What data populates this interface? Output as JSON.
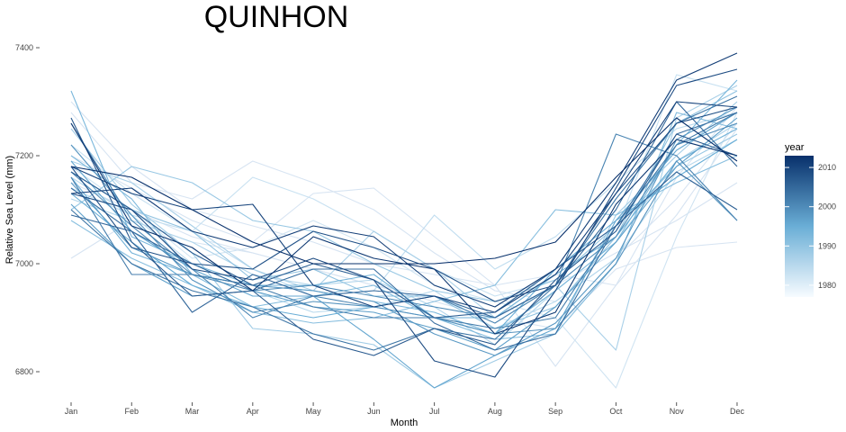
{
  "chart_data": {
    "type": "line",
    "title": "QUINHON",
    "xlabel": "Month",
    "ylabel": "Relative Sea Level (mm)",
    "categories": [
      "Jan",
      "Feb",
      "Mar",
      "Apr",
      "May",
      "Jun",
      "Jul",
      "Aug",
      "Sep",
      "Oct",
      "Nov",
      "Dec"
    ],
    "yticks": [
      6800,
      7000,
      7200,
      7400
    ],
    "ylim": [
      6750,
      7420
    ],
    "grid": false,
    "legend": {
      "title": "year",
      "ticks": [
        1980,
        1990,
        2000,
        2010
      ],
      "range": [
        1977,
        2013
      ],
      "placement": "right",
      "colors": {
        "low": "#f7fbff",
        "mid": "#6aaed6",
        "high": "#08306b"
      }
    },
    "series": [
      {
        "year": 1977,
        "values": [
          7010,
          7080,
          7040,
          7020,
          6990,
          6960,
          6930,
          6900,
          6880,
          6990,
          7030,
          7040
        ]
      },
      {
        "year": 1978,
        "values": [
          7150,
          7100,
          7050,
          7020,
          6990,
          6960,
          6940,
          6900,
          6960,
          7020,
          7080,
          7150
        ]
      },
      {
        "year": 1979,
        "values": [
          7300,
          7180,
          7100,
          7070,
          7040,
          7000,
          6980,
          6960,
          6980,
          6960,
          7090,
          7250
        ]
      },
      {
        "year": 1980,
        "values": [
          7280,
          7150,
          7120,
          7190,
          7150,
          7100,
          7020,
          6950,
          6930,
          7010,
          7120,
          7260
        ]
      },
      {
        "year": 1981,
        "values": [
          7200,
          7140,
          7080,
          7040,
          7130,
          7140,
          7050,
          6960,
          6810,
          6960,
          7160,
          7290
        ]
      },
      {
        "year": 1982,
        "values": [
          7180,
          7100,
          7010,
          7030,
          7080,
          7030,
          6960,
          6930,
          6900,
          6770,
          7050,
          7280
        ]
      },
      {
        "year": 1983,
        "values": [
          7220,
          7130,
          7060,
          7160,
          7120,
          7060,
          6990,
          6940,
          6970,
          7060,
          7350,
          7320
        ]
      },
      {
        "year": 1984,
        "values": [
          7140,
          7090,
          7060,
          6990,
          6940,
          6950,
          7090,
          6990,
          7050,
          7150,
          7250,
          7280
        ]
      },
      {
        "year": 1985,
        "values": [
          7160,
          7090,
          7000,
          6950,
          6910,
          6920,
          6950,
          6880,
          6930,
          7010,
          7170,
          7230
        ]
      },
      {
        "year": 1986,
        "values": [
          7120,
          7080,
          7040,
          6980,
          6960,
          6970,
          6920,
          6850,
          6950,
          7040,
          7190,
          7260
        ]
      },
      {
        "year": 1987,
        "values": [
          7190,
          7150,
          7070,
          6990,
          6950,
          7060,
          6990,
          6900,
          6960,
          6840,
          7270,
          7330
        ]
      },
      {
        "year": 1988,
        "values": [
          7250,
          7110,
          7020,
          6880,
          6870,
          6850,
          6770,
          6820,
          6870,
          7090,
          7200,
          7300
        ]
      },
      {
        "year": 1989,
        "values": [
          7100,
          7180,
          7150,
          7080,
          7060,
          7000,
          6950,
          6930,
          6970,
          7070,
          7180,
          7240
        ]
      },
      {
        "year": 1990,
        "values": [
          7170,
          7100,
          7060,
          6970,
          6990,
          6940,
          6940,
          6880,
          6920,
          7050,
          7260,
          7320
        ]
      },
      {
        "year": 1991,
        "values": [
          7080,
          7010,
          6960,
          6910,
          6890,
          6900,
          6930,
          6960,
          7100,
          7090,
          7150,
          7200
        ]
      },
      {
        "year": 1992,
        "values": [
          7200,
          7120,
          6980,
          6920,
          6940,
          6960,
          6900,
          6860,
          6870,
          7000,
          7280,
          7250
        ]
      },
      {
        "year": 1993,
        "values": [
          7320,
          7050,
          7000,
          6960,
          6950,
          6930,
          6910,
          6870,
          6950,
          7040,
          7220,
          7340
        ]
      },
      {
        "year": 1994,
        "values": [
          7160,
          7020,
          6980,
          6960,
          6960,
          6980,
          6900,
          6900,
          6980,
          7050,
          7190,
          7250
        ]
      },
      {
        "year": 1995,
        "values": [
          7130,
          7040,
          6960,
          6920,
          6900,
          6920,
          6900,
          6870,
          6990,
          7080,
          7160,
          7230
        ]
      },
      {
        "year": 1996,
        "values": [
          7190,
          7060,
          6990,
          6940,
          6940,
          6860,
          6770,
          6830,
          6880,
          7080,
          7210,
          7280
        ]
      },
      {
        "year": 1997,
        "values": [
          7110,
          7000,
          6940,
          6950,
          6920,
          6910,
          6880,
          6840,
          6920,
          7040,
          7180,
          7270
        ]
      },
      {
        "year": 1998,
        "values": [
          7150,
          7030,
          6980,
          6960,
          6950,
          6930,
          6870,
          6830,
          6890,
          7010,
          7230,
          7290
        ]
      },
      {
        "year": 1999,
        "values": [
          7220,
          7090,
          6970,
          6910,
          6930,
          6920,
          6900,
          6870,
          6880,
          7000,
          7190,
          7080
        ]
      },
      {
        "year": 2000,
        "values": [
          7170,
          7070,
          6980,
          6950,
          6960,
          6940,
          6920,
          6900,
          6960,
          7050,
          7220,
          7260
        ]
      },
      {
        "year": 2001,
        "values": [
          7260,
          7080,
          6990,
          6900,
          6940,
          6920,
          6940,
          6890,
          6960,
          7240,
          7200,
          7080
        ]
      },
      {
        "year": 2002,
        "values": [
          7160,
          6980,
          6980,
          6960,
          6920,
          6900,
          6900,
          6880,
          6900,
          7070,
          7220,
          7280
        ]
      },
      {
        "year": 2003,
        "values": [
          7100,
          7000,
          6950,
          6920,
          6870,
          6840,
          6880,
          6860,
          6960,
          7120,
          7260,
          7310
        ]
      },
      {
        "year": 2004,
        "values": [
          7140,
          7060,
          7000,
          6950,
          6990,
          6990,
          6890,
          6840,
          6870,
          7070,
          7240,
          7280
        ]
      },
      {
        "year": 2005,
        "values": [
          7090,
          7060,
          6910,
          6980,
          6940,
          6950,
          6940,
          6900,
          6960,
          7100,
          7300,
          7180
        ]
      },
      {
        "year": 2006,
        "values": [
          7170,
          7100,
          7020,
          6960,
          7000,
          6970,
          6900,
          6910,
          6990,
          7070,
          7170,
          7100
        ]
      },
      {
        "year": 2007,
        "values": [
          7270,
          7040,
          6940,
          6950,
          6860,
          6830,
          6880,
          6850,
          6970,
          7060,
          7240,
          7200
        ]
      },
      {
        "year": 2008,
        "values": [
          7180,
          7030,
          7000,
          6990,
          7060,
          7030,
          6990,
          6930,
          6960,
          7130,
          7260,
          7290
        ]
      },
      {
        "year": 2009,
        "values": [
          7130,
          7100,
          6990,
          6970,
          7010,
          6970,
          6820,
          6790,
          6950,
          7140,
          7330,
          7360
        ]
      },
      {
        "year": 2010,
        "values": [
          7180,
          7130,
          7100,
          7110,
          6960,
          6920,
          6940,
          6910,
          6980,
          7130,
          7300,
          7290
        ]
      },
      {
        "year": 2011,
        "values": [
          7130,
          7140,
          7060,
          7030,
          7070,
          7050,
          6960,
          6920,
          6990,
          7150,
          7340,
          7390
        ]
      },
      {
        "year": 2012,
        "values": [
          7260,
          7070,
          7030,
          6950,
          7050,
          7010,
          6990,
          6870,
          6910,
          7110,
          7230,
          7200
        ]
      },
      {
        "year": 2013,
        "values": [
          7180,
          7160,
          7100,
          7040,
          7000,
          7000,
          7000,
          7010,
          7040,
          7160,
          7270,
          7190
        ]
      }
    ]
  }
}
